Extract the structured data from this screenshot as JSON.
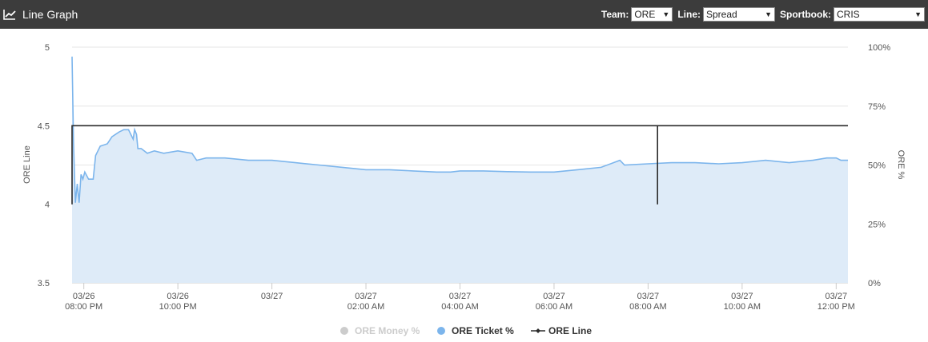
{
  "header": {
    "title": "Line Graph",
    "icon": "line-chart-icon",
    "controls": {
      "team_label": "Team:",
      "team_value": "ORE",
      "line_label": "Line:",
      "line_value": "Spread",
      "sportbook_label": "Sportbook:",
      "sportbook_value": "CRIS"
    }
  },
  "colors": {
    "header_bg": "#3c3c3c",
    "ticket_line": "#7cb5ec",
    "ticket_fill": "#deebf8",
    "ore_line": "#2b2b2b",
    "money_inactive": "#cccccc"
  },
  "chart_data": {
    "type": "line",
    "ylabel_left": "ORE Line",
    "ylabel_right": "ORE %",
    "yleft_ticks": [
      "5",
      "4.5",
      "4",
      "3.5"
    ],
    "yright_ticks": [
      "100%",
      "75%",
      "50%",
      "25%",
      "0%"
    ],
    "ylim_left": [
      3.5,
      5
    ],
    "ylim_right": [
      0,
      100
    ],
    "grid": true,
    "legend_position": "bottom",
    "x_ticks": [
      {
        "date": "03/26",
        "time": "08:00 PM"
      },
      {
        "date": "03/26",
        "time": "10:00 PM"
      },
      {
        "date": "03/27",
        "time": ""
      },
      {
        "date": "03/27",
        "time": "02:00 AM"
      },
      {
        "date": "03/27",
        "time": "04:00 AM"
      },
      {
        "date": "03/27",
        "time": "06:00 AM"
      },
      {
        "date": "03/27",
        "time": "08:00 AM"
      },
      {
        "date": "03/27",
        "time": "10:00 AM"
      },
      {
        "date": "03/27",
        "time": "12:00 PM"
      }
    ],
    "x_tick_hours": [
      20,
      22,
      24,
      26,
      28,
      30,
      32,
      34,
      36
    ],
    "xlim_hours": [
      19.75,
      36.25
    ],
    "series": [
      {
        "name": "ORE Money %",
        "visible": false,
        "values": []
      },
      {
        "name": "ORE Ticket %",
        "axis": "right",
        "points": [
          [
            19.75,
            96
          ],
          [
            19.78,
            60
          ],
          [
            19.82,
            34
          ],
          [
            19.86,
            42
          ],
          [
            19.9,
            34
          ],
          [
            19.94,
            46
          ],
          [
            19.98,
            44
          ],
          [
            20.02,
            47
          ],
          [
            20.1,
            44
          ],
          [
            20.2,
            44
          ],
          [
            20.25,
            54
          ],
          [
            20.35,
            58
          ],
          [
            20.5,
            59
          ],
          [
            20.6,
            62
          ],
          [
            20.75,
            64
          ],
          [
            20.85,
            65
          ],
          [
            20.95,
            65
          ],
          [
            21.05,
            61
          ],
          [
            21.08,
            65
          ],
          [
            21.12,
            63
          ],
          [
            21.15,
            57
          ],
          [
            21.22,
            57
          ],
          [
            21.35,
            55
          ],
          [
            21.5,
            56
          ],
          [
            21.7,
            55
          ],
          [
            22.0,
            56
          ],
          [
            22.3,
            55
          ],
          [
            22.4,
            52
          ],
          [
            22.6,
            53
          ],
          [
            23.0,
            53
          ],
          [
            23.5,
            52
          ],
          [
            24.0,
            52
          ],
          [
            24.5,
            51
          ],
          [
            25.0,
            50
          ],
          [
            25.5,
            49
          ],
          [
            26.0,
            48
          ],
          [
            26.5,
            48
          ],
          [
            27.0,
            47.5
          ],
          [
            27.5,
            47
          ],
          [
            27.8,
            47
          ],
          [
            28.0,
            47.5
          ],
          [
            28.5,
            47.5
          ],
          [
            29.0,
            47.2
          ],
          [
            29.5,
            47
          ],
          [
            30.0,
            47
          ],
          [
            30.5,
            48
          ],
          [
            31.0,
            49
          ],
          [
            31.4,
            52
          ],
          [
            31.5,
            50
          ],
          [
            32.0,
            50.5
          ],
          [
            32.5,
            51
          ],
          [
            33.0,
            51
          ],
          [
            33.5,
            50.5
          ],
          [
            34.0,
            51
          ],
          [
            34.5,
            52
          ],
          [
            35.0,
            51
          ],
          [
            35.5,
            52
          ],
          [
            35.8,
            53
          ],
          [
            36.0,
            53
          ],
          [
            36.1,
            52
          ],
          [
            36.25,
            52
          ]
        ]
      },
      {
        "name": "ORE Line",
        "axis": "left",
        "segments": [
          [
            [
              19.75,
              4.0
            ],
            [
              19.75,
              4.5
            ],
            [
              32.2,
              4.5
            ],
            [
              32.2,
              4.0
            ]
          ],
          [
            [
              32.2,
              4.5
            ],
            [
              36.25,
              4.5
            ]
          ]
        ]
      }
    ]
  }
}
